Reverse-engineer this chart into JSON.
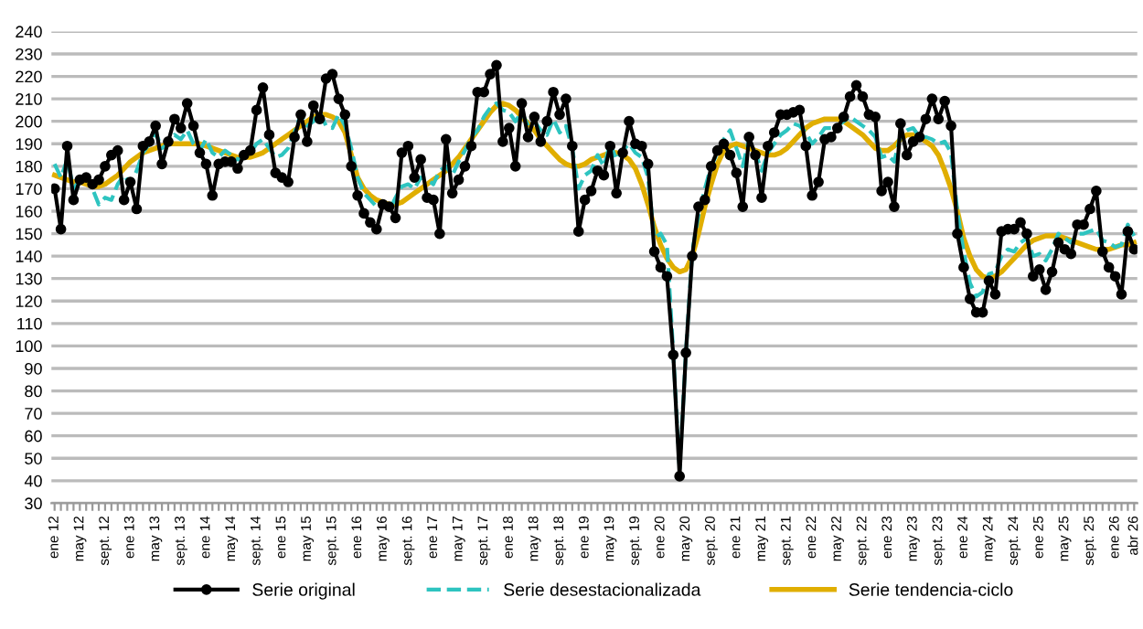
{
  "chart_data": {
    "type": "line",
    "categories": [
      "ene 12",
      null,
      null,
      null,
      "may 12",
      null,
      null,
      null,
      "sept. 12",
      null,
      null,
      null,
      "ene 13",
      null,
      null,
      null,
      "may 13",
      null,
      null,
      null,
      "sept. 13",
      null,
      null,
      null,
      "ene 14",
      null,
      null,
      null,
      "may 14",
      null,
      null,
      null,
      "sept. 14",
      null,
      null,
      null,
      "ene 15",
      null,
      null,
      null,
      "may 15",
      null,
      null,
      null,
      "sept. 15",
      null,
      null,
      null,
      "ene 16",
      null,
      null,
      null,
      "may 16",
      null,
      null,
      null,
      "sept. 16",
      null,
      null,
      null,
      "ene 17",
      null,
      null,
      null,
      "may 17",
      null,
      null,
      null,
      "sept. 17",
      null,
      null,
      null,
      "ene 18",
      null,
      null,
      null,
      "may 18",
      null,
      null,
      null,
      "sept. 18",
      null,
      null,
      null,
      "ene 19",
      null,
      null,
      null,
      "may 19",
      null,
      null,
      null,
      "sept. 19",
      null,
      null,
      null,
      "ene 20",
      null,
      null,
      null,
      "may 20",
      null,
      null,
      null,
      "sept. 20",
      null,
      null,
      null,
      "ene 21",
      null,
      null,
      null,
      "may 21",
      null,
      null,
      null,
      "sept. 21",
      null,
      null,
      null,
      "ene 22",
      null,
      null,
      null,
      "may 22",
      null,
      null,
      null,
      "sept. 22",
      null,
      null,
      null,
      "ene 23",
      null,
      null,
      null,
      "may 23",
      null,
      null,
      null,
      "sept. 23",
      null,
      null,
      null,
      "ene 24",
      null,
      null,
      null,
      "may 24",
      null,
      null,
      null,
      "sept. 24",
      null,
      null,
      null,
      "ene 25",
      null,
      null,
      null,
      "may 25",
      null,
      null,
      null,
      "sept. 25",
      null,
      null,
      null,
      "ene 26",
      null,
      null,
      "abr 26"
    ],
    "series": [
      {
        "name": "Serie original",
        "color": "#000000",
        "marker": "circle",
        "line_style": "solid",
        "values": [
          170,
          152,
          189,
          165,
          174,
          175,
          172,
          174,
          180,
          185,
          187,
          165,
          173,
          161,
          189,
          191,
          198,
          181,
          191,
          201,
          197,
          208,
          198,
          186,
          181,
          167,
          181,
          182,
          182,
          179,
          185,
          187,
          205,
          215,
          194,
          177,
          175,
          173,
          193,
          203,
          191,
          207,
          201,
          219,
          221,
          210,
          203,
          180,
          167,
          159,
          155,
          152,
          163,
          162,
          157,
          186,
          189,
          175,
          183,
          166,
          165,
          150,
          192,
          168,
          174,
          180,
          189,
          213,
          213,
          221,
          225,
          191,
          197,
          180,
          208,
          193,
          202,
          191,
          200,
          213,
          203,
          210,
          189,
          151,
          165,
          169,
          178,
          176,
          189,
          168,
          186,
          200,
          190,
          189,
          181,
          142,
          135,
          131,
          96,
          42,
          97,
          140,
          162,
          165,
          180,
          187,
          190,
          185,
          177,
          162,
          193,
          185,
          166,
          189,
          195,
          203,
          203,
          204,
          205,
          189,
          167,
          173,
          192,
          193,
          197,
          202,
          211,
          216,
          211,
          203,
          202,
          169,
          173,
          162,
          199,
          185,
          191,
          193,
          201,
          210,
          201,
          209,
          198,
          150,
          135,
          121,
          115,
          115,
          129,
          123,
          151,
          152,
          152,
          155,
          150,
          131,
          134,
          125,
          133,
          146,
          143,
          141,
          154,
          154,
          161,
          169,
          142,
          135,
          131,
          123,
          151,
          143
        ]
      },
      {
        "name": "Serie desestacionalizada",
        "color": "#2ec4c0",
        "marker": "none",
        "line_style": "dashed",
        "values": [
          181,
          175,
          183,
          170,
          174,
          176,
          170,
          163,
          166,
          165,
          172,
          176,
          172,
          178,
          186,
          190,
          195,
          188,
          190,
          194,
          192,
          196,
          190,
          187,
          192,
          186,
          184,
          187,
          185,
          183,
          184,
          186,
          190,
          192,
          188,
          184,
          185,
          188,
          195,
          203,
          198,
          200,
          204,
          198,
          197,
          203,
          198,
          188,
          175,
          168,
          165,
          162,
          164,
          160,
          166,
          171,
          172,
          170,
          175,
          174,
          172,
          178,
          180,
          176,
          182,
          187,
          193,
          196,
          202,
          206,
          208,
          205,
          204,
          200,
          204,
          198,
          200,
          196,
          194,
          201,
          195,
          198,
          188,
          170,
          176,
          178,
          185,
          180,
          190,
          183,
          187,
          190,
          186,
          184,
          175,
          148,
          150,
          145,
          97,
          45,
          97,
          142,
          158,
          170,
          180,
          186,
          192,
          196,
          188,
          180,
          192,
          186,
          178,
          186,
          190,
          194,
          196,
          199,
          198,
          195,
          190,
          193,
          197,
          197,
          198,
          200,
          202,
          200,
          198,
          196,
          193,
          184,
          185,
          182,
          194,
          196,
          197,
          193,
          193,
          192,
          190,
          191,
          186,
          160,
          142,
          128,
          122,
          124,
          132,
          133,
          140,
          143,
          142,
          146,
          148,
          140,
          141,
          138,
          143,
          150,
          148,
          146,
          150,
          150,
          151,
          152,
          147,
          146,
          144,
          145,
          154,
          149
        ]
      },
      {
        "name": "Serie tendencia-ciclo",
        "color": "#e0ae00",
        "marker": "none",
        "line_style": "solid",
        "values": [
          176,
          175,
          174,
          173,
          173,
          172,
          171,
          171,
          172,
          174,
          176,
          179,
          182,
          184,
          186,
          187,
          188,
          189,
          190,
          190,
          190,
          190,
          190,
          190,
          189,
          188,
          187,
          186,
          185,
          184,
          184,
          184,
          185,
          186,
          188,
          190,
          192,
          194,
          196,
          198,
          200,
          202,
          203,
          203,
          202,
          200,
          195,
          185,
          175,
          170,
          167,
          165,
          164,
          163,
          163,
          164,
          166,
          168,
          170,
          172,
          174,
          176,
          178,
          181,
          184,
          188,
          192,
          196,
          200,
          204,
          207,
          208,
          207,
          205,
          202,
          199,
          196,
          192,
          189,
          186,
          183,
          181,
          180,
          180,
          181,
          183,
          184,
          185,
          186,
          186,
          185,
          183,
          179,
          172,
          163,
          153,
          145,
          139,
          135,
          133,
          134,
          140,
          150,
          162,
          172,
          181,
          187,
          189,
          190,
          189,
          188,
          187,
          186,
          185,
          185,
          186,
          188,
          191,
          194,
          197,
          199,
          200,
          201,
          201,
          201,
          200,
          198,
          196,
          194,
          191,
          188,
          187,
          187,
          189,
          192,
          194,
          194,
          193,
          191,
          189,
          185,
          178,
          170,
          160,
          148,
          140,
          134,
          131,
          130,
          131,
          133,
          136,
          139,
          142,
          145,
          147,
          148,
          149,
          149,
          149,
          148,
          147,
          146,
          145,
          144,
          143,
          143,
          143,
          144,
          145,
          145,
          146
        ]
      }
    ],
    "ylim": [
      30,
      240
    ],
    "yticks": [
      30,
      40,
      50,
      60,
      70,
      80,
      90,
      100,
      110,
      120,
      130,
      140,
      150,
      160,
      170,
      180,
      190,
      200,
      210,
      220,
      230,
      240
    ],
    "grid": "y",
    "legend": "bottom"
  }
}
